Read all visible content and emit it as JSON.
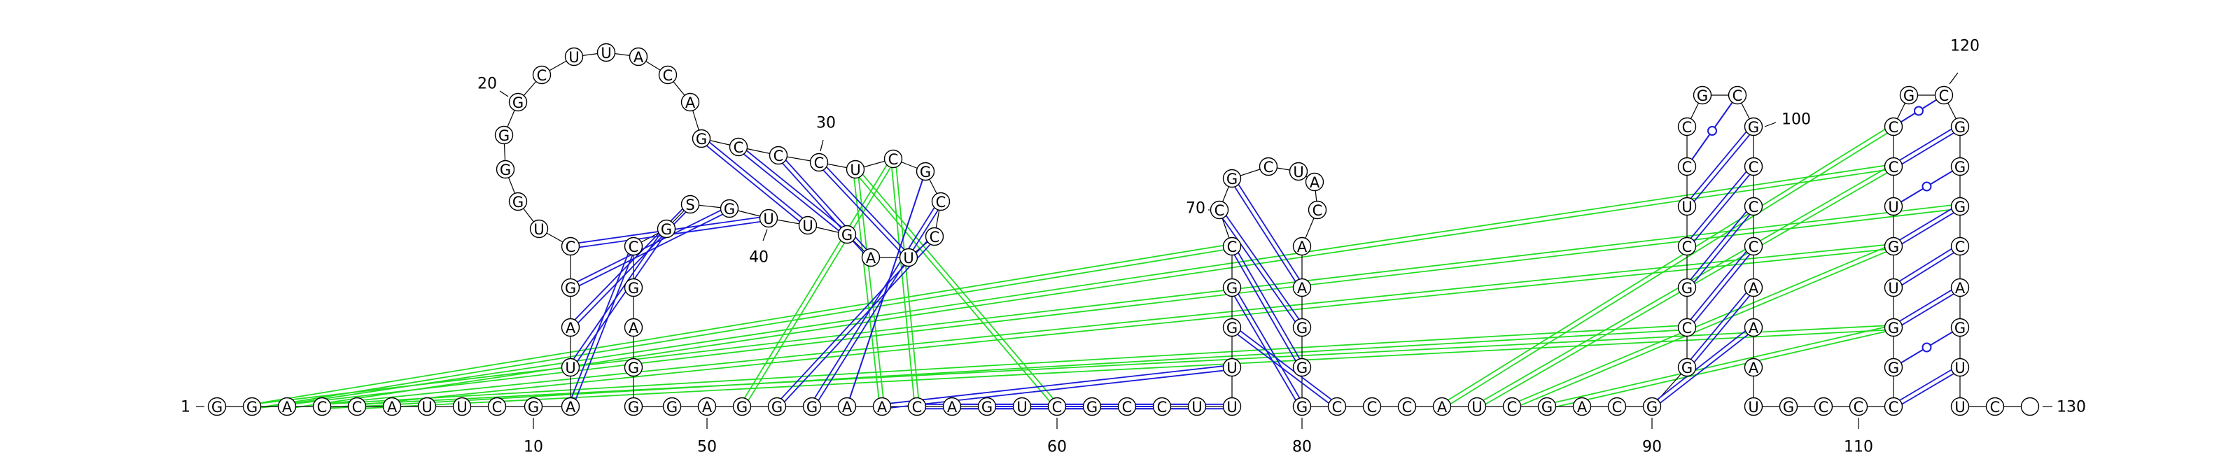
{
  "sequence": "GGACCAUUCGAUAGCUGGGGCUUACAGCCCUCGCCUAGUUGSGCGAGGGAGGGAACAGUCGCCUUUGGCCGCUACAAGGGCCCAUCGACGGCGCUCCGCGCCCAAAUGCCCGGUGUCCGCGGGCAGUUC",
  "numbers": [
    {
      "label": "1",
      "pos": 1,
      "anchor": "end"
    },
    {
      "label": "10",
      "pos": 10,
      "anchor": "middle"
    },
    {
      "label": "20",
      "pos": 20,
      "anchor": "end"
    },
    {
      "label": "30",
      "pos": 30,
      "anchor": "middle"
    },
    {
      "label": "40",
      "pos": 40,
      "anchor": "middle"
    },
    {
      "label": "50",
      "pos": 50,
      "anchor": "middle"
    },
    {
      "label": "60",
      "pos": 60,
      "anchor": "middle"
    },
    {
      "label": "70",
      "pos": 70,
      "anchor": "end"
    },
    {
      "label": "80",
      "pos": 80,
      "anchor": "middle"
    },
    {
      "label": "90",
      "pos": 90,
      "anchor": "end"
    },
    {
      "label": "100",
      "pos": 100,
      "anchor": "start"
    },
    {
      "label": "110",
      "pos": 110,
      "anchor": "middle"
    },
    {
      "label": "120",
      "pos": 120,
      "anchor": "middle"
    },
    {
      "label": "130",
      "pos": 130,
      "anchor": "start"
    }
  ],
  "pairs": [
    {
      "i": 11,
      "j": 44,
      "type": "canonical"
    },
    {
      "i": 12,
      "j": 43,
      "type": "canonical"
    },
    {
      "i": 13,
      "j": 42,
      "type": "canonical"
    },
    {
      "i": 14,
      "j": 41,
      "type": "canonical"
    },
    {
      "i": 15,
      "j": 40,
      "type": "canonical"
    },
    {
      "i": 27,
      "j": 39,
      "type": "canonical"
    },
    {
      "i": 28,
      "j": 38,
      "type": "canonical"
    },
    {
      "i": 29,
      "j": 37,
      "type": "canonical"
    },
    {
      "i": 30,
      "j": 36,
      "type": "canonical"
    },
    {
      "i": 67,
      "j": 81,
      "type": "canonical"
    },
    {
      "i": 68,
      "j": 80,
      "type": "canonical"
    },
    {
      "i": 69,
      "j": 79,
      "type": "canonical"
    },
    {
      "i": 70,
      "j": 78,
      "type": "canonical"
    },
    {
      "i": 71,
      "j": 77,
      "type": "canonical"
    },
    {
      "i": 90,
      "j": 105,
      "type": "canonical"
    },
    {
      "i": 91,
      "j": 104,
      "type": "canonical"
    },
    {
      "i": 92,
      "j": 103,
      "type": "canonical"
    },
    {
      "i": 93,
      "j": 102,
      "type": "canonical"
    },
    {
      "i": 94,
      "j": 101,
      "type": "canonical"
    },
    {
      "i": 95,
      "j": 100,
      "type": "canonical"
    },
    {
      "i": 96,
      "j": 99,
      "type": "wobble"
    },
    {
      "i": 111,
      "j": 127,
      "type": "canonical"
    },
    {
      "i": 112,
      "j": 126,
      "type": "wobble"
    },
    {
      "i": 113,
      "j": 125,
      "type": "canonical"
    },
    {
      "i": 114,
      "j": 124,
      "type": "canonical"
    },
    {
      "i": 115,
      "j": 123,
      "type": "canonical"
    },
    {
      "i": 116,
      "j": 122,
      "type": "wobble"
    },
    {
      "i": 117,
      "j": 121,
      "type": "canonical"
    },
    {
      "i": 118,
      "j": 120,
      "type": "wobble"
    },
    {
      "i": 52,
      "j": 35,
      "type": "canonical"
    },
    {
      "i": 53,
      "j": 34,
      "type": "canonical"
    },
    {
      "i": 54,
      "j": 33,
      "type": "single"
    },
    {
      "i": 55,
      "j": 66,
      "type": "canonical"
    },
    {
      "i": 56,
      "j": 65,
      "type": "canonical"
    },
    {
      "i": 57,
      "j": 64,
      "type": "canonical"
    },
    {
      "i": 58,
      "j": 63,
      "type": "single"
    },
    {
      "i": 51,
      "j": 32,
      "type": "pseudoknot"
    },
    {
      "i": 55,
      "j": 31,
      "type": "pseudoknot"
    },
    {
      "i": 60,
      "j": 31,
      "type": "pseudoknot"
    },
    {
      "i": 56,
      "j": 32,
      "type": "pseudoknot"
    },
    {
      "i": 2,
      "j": 123,
      "type": "pseudoknot"
    },
    {
      "i": 3,
      "j": 117,
      "type": "pseudoknot"
    },
    {
      "i": 4,
      "j": 115,
      "type": "pseudoknot"
    },
    {
      "i": 5,
      "j": 113,
      "type": "pseudoknot"
    },
    {
      "i": 2,
      "j": 69,
      "type": "pseudoknot"
    },
    {
      "i": 84,
      "j": 118,
      "type": "pseudoknot"
    },
    {
      "i": 85,
      "j": 117,
      "type": "pseudoknot"
    },
    {
      "i": 86,
      "j": 115,
      "type": "pseudoknot"
    },
    {
      "i": 87,
      "j": 113,
      "type": "pseudoknot"
    },
    {
      "i": 4,
      "j": 92,
      "type": "pseudoknot"
    }
  ],
  "colors": {
    "canonical": "#1a1adc",
    "pseudoknot": "#22dd22",
    "outline": "#000000"
  }
}
